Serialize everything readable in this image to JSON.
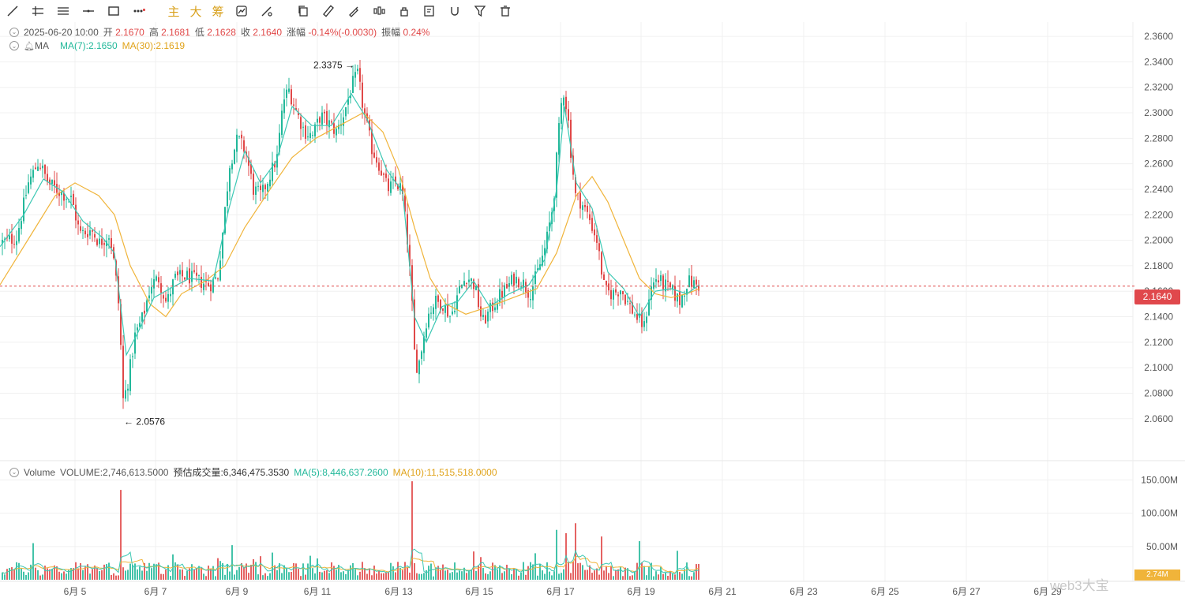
{
  "toolbar": {
    "tools": [
      "line-tool-icon",
      "horizontal-ray-icon",
      "parallel-lines-icon",
      "horizontal-line-icon",
      "rectangle-icon",
      "more-shapes-icon"
    ],
    "text_buttons": [
      "主",
      "大",
      "筹"
    ],
    "tools2": [
      "indicator-icon",
      "measure-icon",
      "copy-icon",
      "ruler-icon",
      "brush-icon",
      "candle-type-icon",
      "lock-icon",
      "edit-note-icon",
      "magnet-icon",
      "filter-icon",
      "delete-icon"
    ]
  },
  "ohlc_legend": {
    "date": "2025-06-20 10:00",
    "open_label": "开",
    "open": "2.1670",
    "high_label": "高",
    "high": "2.1681",
    "low_label": "低",
    "low": "2.1628",
    "close_label": "收",
    "close": "2.1640",
    "change_label": "涨幅",
    "change": "-0.14%(-0.0030)",
    "amp_label": "振幅",
    "amp": "0.24%"
  },
  "ma_legend": {
    "name": "MA",
    "ma7": "MA(7):2.1650",
    "ma30": "MA(30):2.1619"
  },
  "volume_legend": {
    "name": "Volume",
    "volume": "VOLUME:2,746,613.5000",
    "est_label": "预估成交量:6,346,475.3530",
    "ma5": "MA(5):8,446,637.2600",
    "ma10": "MA(10):11,515,518.0000"
  },
  "current_price": "2.1640",
  "volume_tag": "2.74M",
  "watermark": "web3大宝",
  "colors": {
    "up": "#22b89a",
    "down": "#e04848",
    "ma_fast": "#3cc8b4",
    "ma_slow": "#f0b43a",
    "grid": "#f0f0f0",
    "text_axis": "#555555"
  },
  "chart_data": {
    "type": "candlestick",
    "price_axis": {
      "ticks": [
        "2.3600",
        "2.3400",
        "2.3200",
        "2.3000",
        "2.2800",
        "2.2600",
        "2.2400",
        "2.2200",
        "2.2000",
        "2.1800",
        "2.1600",
        "2.1400",
        "2.1200",
        "2.1000",
        "2.0800",
        "2.0600"
      ],
      "range": [
        2.045,
        2.365
      ]
    },
    "volume_axis": {
      "ticks": [
        "150.00M",
        "100.00M",
        "50.00M"
      ],
      "range": [
        0,
        160
      ]
    },
    "x_axis": {
      "ticks": [
        "6月 5",
        "6月 7",
        "6月 9",
        "6月 11",
        "6月 13",
        "6月 15",
        "6月 17",
        "6月 19",
        "6月 21",
        "6月 23",
        "6月 25",
        "6月 27",
        "6月 29"
      ]
    },
    "annotations": [
      {
        "text": "2.3375",
        "type": "max"
      },
      {
        "text": "2.0576",
        "type": "min"
      }
    ],
    "close_path": [
      [
        0,
        2.198
      ],
      [
        20,
        2.202
      ],
      [
        35,
        2.245
      ],
      [
        48,
        2.262
      ],
      [
        60,
        2.245
      ],
      [
        75,
        2.238
      ],
      [
        90,
        2.232
      ],
      [
        100,
        2.205
      ],
      [
        115,
        2.208
      ],
      [
        125,
        2.198
      ],
      [
        138,
        2.205
      ],
      [
        145,
        2.175
      ],
      [
        150,
        2.145
      ],
      [
        155,
        2.075
      ],
      [
        160,
        2.085
      ],
      [
        170,
        2.125
      ],
      [
        180,
        2.14
      ],
      [
        190,
        2.165
      ],
      [
        200,
        2.17
      ],
      [
        210,
        2.15
      ],
      [
        220,
        2.17
      ],
      [
        235,
        2.172
      ],
      [
        250,
        2.168
      ],
      [
        265,
        2.165
      ],
      [
        275,
        2.172
      ],
      [
        280,
        2.2
      ],
      [
        290,
        2.26
      ],
      [
        300,
        2.28
      ],
      [
        310,
        2.27
      ],
      [
        320,
        2.24
      ],
      [
        330,
        2.235
      ],
      [
        340,
        2.25
      ],
      [
        350,
        2.265
      ],
      [
        358,
        2.31
      ],
      [
        365,
        2.318
      ],
      [
        375,
        2.3
      ],
      [
        385,
        2.285
      ],
      [
        395,
        2.282
      ],
      [
        405,
        2.298
      ],
      [
        415,
        2.292
      ],
      [
        425,
        2.285
      ],
      [
        435,
        2.3
      ],
      [
        445,
        2.322
      ],
      [
        452,
        2.33
      ],
      [
        460,
        2.3
      ],
      [
        470,
        2.272
      ],
      [
        480,
        2.258
      ],
      [
        490,
        2.24
      ],
      [
        500,
        2.245
      ],
      [
        508,
        2.24
      ],
      [
        515,
        2.2
      ],
      [
        520,
        2.16
      ],
      [
        525,
        2.1
      ],
      [
        530,
        2.105
      ],
      [
        540,
        2.14
      ],
      [
        550,
        2.152
      ],
      [
        560,
        2.15
      ],
      [
        570,
        2.14
      ],
      [
        580,
        2.16
      ],
      [
        590,
        2.172
      ],
      [
        600,
        2.165
      ],
      [
        610,
        2.135
      ],
      [
        620,
        2.145
      ],
      [
        630,
        2.155
      ],
      [
        640,
        2.162
      ],
      [
        650,
        2.17
      ],
      [
        660,
        2.168
      ],
      [
        670,
        2.158
      ],
      [
        680,
        2.175
      ],
      [
        690,
        2.195
      ],
      [
        700,
        2.23
      ],
      [
        706,
        2.28
      ],
      [
        712,
        2.32
      ],
      [
        718,
        2.3
      ],
      [
        722,
        2.27
      ],
      [
        728,
        2.235
      ],
      [
        735,
        2.23
      ],
      [
        745,
        2.218
      ],
      [
        755,
        2.2
      ],
      [
        765,
        2.16
      ],
      [
        775,
        2.158
      ],
      [
        785,
        2.162
      ],
      [
        795,
        2.15
      ],
      [
        805,
        2.14
      ],
      [
        815,
        2.132
      ],
      [
        822,
        2.16
      ],
      [
        830,
        2.17
      ],
      [
        840,
        2.165
      ],
      [
        850,
        2.16
      ],
      [
        860,
        2.152
      ],
      [
        870,
        2.168
      ],
      [
        880,
        2.165
      ],
      [
        886,
        2.164
      ]
    ],
    "ma7_path": [
      [
        0,
        2.195
      ],
      [
        30,
        2.22
      ],
      [
        55,
        2.248
      ],
      [
        80,
        2.238
      ],
      [
        105,
        2.215
      ],
      [
        130,
        2.202
      ],
      [
        145,
        2.19
      ],
      [
        160,
        2.11
      ],
      [
        175,
        2.128
      ],
      [
        195,
        2.155
      ],
      [
        215,
        2.162
      ],
      [
        240,
        2.17
      ],
      [
        270,
        2.168
      ],
      [
        290,
        2.225
      ],
      [
        310,
        2.27
      ],
      [
        330,
        2.245
      ],
      [
        350,
        2.262
      ],
      [
        370,
        2.305
      ],
      [
        395,
        2.29
      ],
      [
        420,
        2.29
      ],
      [
        445,
        2.315
      ],
      [
        465,
        2.295
      ],
      [
        490,
        2.255
      ],
      [
        510,
        2.238
      ],
      [
        525,
        2.14
      ],
      [
        540,
        2.12
      ],
      [
        560,
        2.148
      ],
      [
        580,
        2.152
      ],
      [
        600,
        2.168
      ],
      [
        620,
        2.148
      ],
      [
        645,
        2.158
      ],
      [
        670,
        2.165
      ],
      [
        690,
        2.185
      ],
      [
        705,
        2.24
      ],
      [
        715,
        2.305
      ],
      [
        730,
        2.245
      ],
      [
        750,
        2.225
      ],
      [
        770,
        2.175
      ],
      [
        790,
        2.162
      ],
      [
        810,
        2.14
      ],
      [
        830,
        2.16
      ],
      [
        850,
        2.162
      ],
      [
        870,
        2.158
      ],
      [
        886,
        2.165
      ]
    ],
    "ma30_path": [
      [
        0,
        2.165
      ],
      [
        40,
        2.205
      ],
      [
        70,
        2.235
      ],
      [
        95,
        2.245
      ],
      [
        125,
        2.235
      ],
      [
        145,
        2.22
      ],
      [
        165,
        2.18
      ],
      [
        190,
        2.15
      ],
      [
        210,
        2.14
      ],
      [
        230,
        2.158
      ],
      [
        260,
        2.168
      ],
      [
        285,
        2.18
      ],
      [
        310,
        2.21
      ],
      [
        340,
        2.238
      ],
      [
        370,
        2.265
      ],
      [
        400,
        2.28
      ],
      [
        430,
        2.29
      ],
      [
        460,
        2.3
      ],
      [
        485,
        2.285
      ],
      [
        505,
        2.255
      ],
      [
        525,
        2.21
      ],
      [
        545,
        2.17
      ],
      [
        565,
        2.15
      ],
      [
        590,
        2.142
      ],
      [
        620,
        2.148
      ],
      [
        650,
        2.155
      ],
      [
        680,
        2.162
      ],
      [
        705,
        2.19
      ],
      [
        730,
        2.235
      ],
      [
        750,
        2.25
      ],
      [
        770,
        2.23
      ],
      [
        790,
        2.2
      ],
      [
        810,
        2.17
      ],
      [
        830,
        2.158
      ],
      [
        850,
        2.155
      ],
      [
        870,
        2.158
      ],
      [
        886,
        2.162
      ]
    ]
  }
}
